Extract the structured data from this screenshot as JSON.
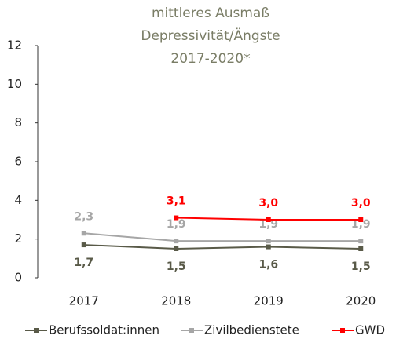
{
  "chart_data": {
    "type": "line",
    "title": [
      "mittleres Ausmaß",
      "Depressivität/Ängste",
      "2017-2020*"
    ],
    "categories": [
      "2017",
      "2018",
      "2019",
      "2020"
    ],
    "series": [
      {
        "name": "Berufssoldat:innen",
        "color": "#595a48",
        "values": [
          1.7,
          1.5,
          1.6,
          1.5
        ],
        "value_labels": [
          "1,7",
          "1,5",
          "1,6",
          "1,5"
        ]
      },
      {
        "name": "Zivilbedienstete",
        "color": "#a6a6a6",
        "values": [
          2.3,
          1.9,
          1.9,
          1.9
        ],
        "value_labels": [
          "2,3",
          "1,9",
          "1,9",
          "1,9"
        ]
      },
      {
        "name": "GWD",
        "color": "#ff0000",
        "values": [
          null,
          3.1,
          3.0,
          3.0
        ],
        "value_labels": [
          null,
          "3,1",
          "3,0",
          "3,0"
        ]
      }
    ],
    "ylim": [
      0,
      12
    ],
    "yticks": [
      0,
      2,
      4,
      6,
      8,
      10,
      12
    ],
    "grid": false,
    "legend": "bottom"
  }
}
